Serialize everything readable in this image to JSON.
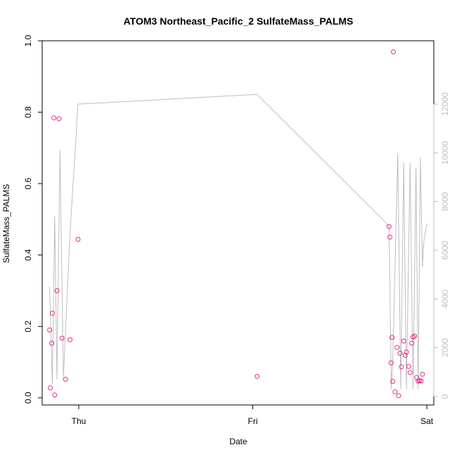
{
  "chart_data": {
    "type": "scatter",
    "title": "ATOM3 Northeast_Pacific_2 SulfateMass_PALMS",
    "xlabel": "Date",
    "ylabel": "SulfateMass_PALMS",
    "x_ticks": [
      {
        "label": "Thu",
        "value": 0
      },
      {
        "label": "Fri",
        "value": 1
      },
      {
        "label": "Sat",
        "value": 2
      }
    ],
    "xlim": [
      -0.21,
      2.04
    ],
    "ylim": [
      -0.02,
      1.0
    ],
    "y_ticks": [
      0.0,
      0.2,
      0.4,
      0.6,
      0.8,
      1.0
    ],
    "y_tick_labels": [
      "0.0",
      "0.2",
      "0.4",
      "0.6",
      "0.8",
      "1.0"
    ],
    "y2_lim": [
      -350,
      14600
    ],
    "y2_ticks": [
      0,
      2000,
      4000,
      6000,
      8000,
      10000,
      12000
    ],
    "y2_tick_labels": [
      "0",
      "2000",
      "4000",
      "6000",
      "8000",
      "10000",
      "12000"
    ],
    "grid": false,
    "colors": {
      "points": "#E7298A",
      "altitude_line": "#BEBEBE",
      "right_axis": "#BEBEBE"
    },
    "series": [
      {
        "kind": "points",
        "x": [
          -0.167,
          -0.163,
          -0.155,
          -0.151,
          -0.143,
          -0.138,
          -0.125,
          -0.113,
          -0.096,
          -0.076,
          -0.05,
          -0.004,
          1.025,
          1.783,
          1.788,
          1.795,
          1.8,
          1.804,
          1.808,
          1.817,
          1.829,
          1.838,
          1.846,
          1.854,
          1.867,
          1.875,
          1.883,
          1.896,
          1.904,
          1.913,
          1.921,
          1.929,
          1.942,
          1.95,
          1.958,
          1.967,
          1.975
        ],
        "y": [
          0.19,
          0.028,
          0.153,
          0.237,
          0.784,
          0.008,
          0.3,
          0.782,
          0.167,
          0.052,
          0.163,
          0.444,
          0.06,
          0.48,
          0.45,
          0.098,
          0.169,
          0.046,
          0.969,
          0.017,
          0.141,
          0.006,
          0.125,
          0.087,
          0.159,
          0.119,
          0.128,
          0.088,
          0.071,
          0.153,
          0.17,
          0.173,
          0.057,
          0.047,
          0.048,
          0.047,
          0.066
        ]
      },
      {
        "kind": "line",
        "axis": "right",
        "x": [
          -0.167,
          -0.152,
          -0.138,
          -0.125,
          -0.108,
          -0.088,
          -0.05,
          -0.004,
          1.025,
          1.783,
          1.796,
          1.804,
          1.833,
          1.85,
          1.867,
          1.883,
          1.904,
          1.921,
          1.938,
          1.95,
          1.963,
          1.975,
          1.983,
          2.0
        ],
        "y": [
          4500,
          500,
          7400,
          700,
          10100,
          800,
          6700,
          12000,
          12400,
          7000,
          300,
          1500,
          10000,
          300,
          9600,
          300,
          9600,
          300,
          9400,
          300,
          9800,
          5300,
          6400,
          7100
        ]
      }
    ]
  }
}
